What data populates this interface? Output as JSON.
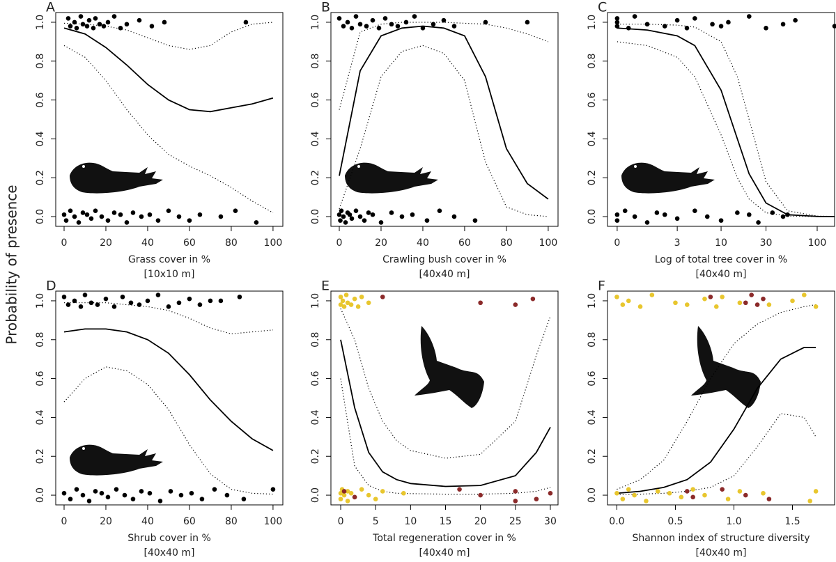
{
  "ylabel": "Probability of presence",
  "chart_data": [
    {
      "type": "line",
      "title": "A",
      "xlabel": "Grass cover in %",
      "xlabel2": "[10x10 m]",
      "xlim": [
        -4,
        104.7
      ],
      "ylim": [
        -0.05,
        1.05
      ],
      "xticks": [
        0,
        20,
        40,
        60,
        80,
        100
      ],
      "yticks": [
        {
          "value": 0,
          "label": "0.0"
        },
        {
          "value": 0.2,
          "label": "0.2"
        },
        {
          "value": 0.4,
          "label": "0.4"
        },
        {
          "value": 0.6,
          "label": "0.6"
        },
        {
          "value": 0.8,
          "label": "0.8"
        },
        {
          "value": 1,
          "label": "1.0"
        }
      ],
      "x": [
        0,
        10,
        20,
        30,
        40,
        50,
        60,
        70,
        80,
        90,
        100
      ],
      "fit": [
        0.97,
        0.94,
        0.87,
        0.78,
        0.68,
        0.6,
        0.55,
        0.54,
        0.56,
        0.58,
        0.61
      ],
      "upper": [
        0.995,
        0.99,
        0.98,
        0.96,
        0.92,
        0.88,
        0.86,
        0.88,
        0.95,
        0.99,
        1.0
      ],
      "lower": [
        0.88,
        0.82,
        0.7,
        0.55,
        0.42,
        0.32,
        0.26,
        0.21,
        0.15,
        0.08,
        0.02
      ],
      "groups": [
        {
          "color": "#000000",
          "x": [
            2,
            3,
            5,
            6,
            8,
            9,
            11,
            12,
            14,
            15,
            17,
            19,
            21,
            24,
            27,
            30,
            36,
            42,
            48,
            87,
            0,
            1,
            3,
            5,
            7,
            9,
            11,
            13,
            15,
            18,
            21,
            24,
            27,
            30,
            33,
            37,
            41,
            45,
            50,
            55,
            60,
            65,
            75,
            82,
            92
          ],
          "y": [
            1.02,
            0.98,
            1.0,
            0.97,
            1.03,
            0.99,
            0.98,
            1.01,
            0.97,
            1.02,
            0.99,
            0.98,
            1.0,
            1.03,
            0.97,
            0.99,
            1.01,
            0.98,
            1.0,
            1.0,
            0.01,
            -0.02,
            0.03,
            0.0,
            -0.03,
            0.02,
            0.01,
            -0.01,
            0.03,
            0.0,
            -0.02,
            0.02,
            0.01,
            -0.03,
            0.02,
            0.0,
            0.01,
            -0.02,
            0.03,
            0.0,
            -0.02,
            0.01,
            0.0,
            0.03,
            -0.03
          ]
        }
      ]
    },
    {
      "type": "line",
      "title": "B",
      "xlabel": "Crawling bush cover in %",
      "xlabel2": "[40x40 m]",
      "xlim": [
        -4,
        104.7
      ],
      "ylim": [
        -0.05,
        1.05
      ],
      "xticks": [
        0,
        20,
        40,
        60,
        80,
        100
      ],
      "yticks": [
        {
          "value": 0,
          "label": "0.0"
        },
        {
          "value": 0.2,
          "label": "0.2"
        },
        {
          "value": 0.4,
          "label": "0.4"
        },
        {
          "value": 0.6,
          "label": "0.6"
        },
        {
          "value": 0.8,
          "label": "0.8"
        },
        {
          "value": 1,
          "label": "1.0"
        }
      ],
      "x": [
        0,
        10,
        20,
        30,
        40,
        50,
        60,
        70,
        80,
        90,
        100
      ],
      "fit": [
        0.21,
        0.75,
        0.93,
        0.97,
        0.98,
        0.97,
        0.93,
        0.72,
        0.35,
        0.17,
        0.09
      ],
      "upper": [
        0.55,
        0.95,
        0.99,
        1.0,
        1.0,
        1.0,
        0.995,
        0.99,
        0.97,
        0.94,
        0.9
      ],
      "lower": [
        0.04,
        0.35,
        0.72,
        0.85,
        0.88,
        0.84,
        0.7,
        0.28,
        0.05,
        0.01,
        0.0
      ],
      "groups": [
        {
          "color": "#000000",
          "x": [
            0,
            2,
            4,
            6,
            8,
            10,
            13,
            16,
            19,
            22,
            25,
            28,
            32,
            36,
            40,
            45,
            50,
            55,
            70,
            90,
            0,
            0.5,
            1,
            2,
            3,
            4,
            5,
            6,
            8,
            10,
            12,
            14,
            16,
            20,
            25,
            30,
            35,
            42,
            48,
            55,
            65
          ],
          "y": [
            1.02,
            0.98,
            1.0,
            0.97,
            1.03,
            0.99,
            0.98,
            1.01,
            0.97,
            1.02,
            0.99,
            0.98,
            1.0,
            1.03,
            0.97,
            0.99,
            1.01,
            0.98,
            1.0,
            1.0,
            0.01,
            -0.02,
            0.03,
            0.0,
            -0.03,
            0.02,
            0.01,
            -0.01,
            0.03,
            0.0,
            -0.02,
            0.02,
            0.01,
            -0.03,
            0.02,
            0.0,
            0.01,
            -0.02,
            0.03,
            0.0,
            -0.02
          ]
        }
      ]
    },
    {
      "type": "line",
      "title": "C",
      "xlabel": "Log of total tree cover in %",
      "xlabel2": "[40x40 m]",
      "xscale": "log1p",
      "xlim": [
        -0.2,
        150
      ],
      "ylim": [
        -0.05,
        1.05
      ],
      "xticks": [
        0,
        3,
        10,
        30,
        100
      ],
      "yticks": [
        {
          "value": 0,
          "label": "0.0"
        },
        {
          "value": 0.2,
          "label": "0.2"
        },
        {
          "value": 0.4,
          "label": "0.4"
        },
        {
          "value": 0.6,
          "label": "0.6"
        },
        {
          "value": 0.8,
          "label": "0.8"
        },
        {
          "value": 1,
          "label": "1.0"
        }
      ],
      "x": [
        0,
        1,
        3,
        5,
        10,
        15,
        20,
        30,
        50,
        100,
        150
      ],
      "fit": [
        0.97,
        0.96,
        0.93,
        0.88,
        0.65,
        0.4,
        0.22,
        0.07,
        0.01,
        0.001,
        0
      ],
      "upper": [
        0.99,
        0.99,
        0.985,
        0.975,
        0.9,
        0.72,
        0.5,
        0.18,
        0.03,
        0.003,
        0.001
      ],
      "lower": [
        0.9,
        0.88,
        0.82,
        0.72,
        0.42,
        0.2,
        0.09,
        0.02,
        0.003,
        0,
        0
      ],
      "groups": [
        {
          "color": "#000000",
          "x": [
            0,
            0,
            0,
            0.3,
            0.5,
            1,
            2,
            3,
            4,
            5,
            8,
            10,
            12,
            20,
            30,
            45,
            60,
            150,
            0,
            0,
            0.2,
            0.5,
            1,
            1.5,
            2,
            3,
            5,
            7,
            10,
            15,
            20,
            25,
            35,
            45,
            50
          ],
          "y": [
            1.02,
            0.98,
            1.0,
            0.97,
            1.03,
            0.99,
            0.98,
            1.01,
            0.97,
            1.02,
            0.99,
            0.98,
            1.0,
            1.03,
            0.97,
            0.99,
            1.01,
            0.98,
            0.01,
            -0.02,
            0.03,
            0.0,
            -0.03,
            0.02,
            0.01,
            -0.01,
            0.03,
            0.0,
            -0.02,
            0.02,
            0.01,
            -0.03,
            0.02,
            0.0,
            0.01
          ]
        }
      ]
    },
    {
      "type": "line",
      "title": "D",
      "xlabel": "Shrub cover in %",
      "xlabel2": "[40x40 m]",
      "xlim": [
        -4,
        104.7
      ],
      "ylim": [
        -0.05,
        1.05
      ],
      "xticks": [
        0,
        20,
        40,
        60,
        80,
        100
      ],
      "yticks": [
        {
          "value": 0,
          "label": "0.0"
        },
        {
          "value": 0.2,
          "label": "0.2"
        },
        {
          "value": 0.4,
          "label": "0.4"
        },
        {
          "value": 0.6,
          "label": "0.6"
        },
        {
          "value": 0.8,
          "label": "0.8"
        },
        {
          "value": 1,
          "label": "1.0"
        }
      ],
      "x": [
        0,
        10,
        20,
        30,
        40,
        50,
        60,
        70,
        80,
        90,
        100
      ],
      "fit": [
        0.84,
        0.855,
        0.855,
        0.84,
        0.8,
        0.73,
        0.62,
        0.49,
        0.38,
        0.29,
        0.23
      ],
      "upper": [
        0.99,
        0.99,
        0.99,
        0.98,
        0.97,
        0.95,
        0.91,
        0.86,
        0.83,
        0.84,
        0.85
      ],
      "lower": [
        0.48,
        0.6,
        0.66,
        0.64,
        0.57,
        0.44,
        0.26,
        0.11,
        0.03,
        0.01,
        0.005
      ],
      "groups": [
        {
          "color": "#000000",
          "x": [
            0,
            2,
            5,
            8,
            10,
            13,
            16,
            20,
            24,
            28,
            32,
            36,
            40,
            45,
            50,
            55,
            60,
            65,
            70,
            75,
            84,
            0,
            3,
            6,
            9,
            12,
            15,
            18,
            21,
            25,
            29,
            33,
            37,
            41,
            46,
            51,
            56,
            61,
            66,
            72,
            78,
            86,
            100
          ],
          "y": [
            1.02,
            0.98,
            1.0,
            0.97,
            1.03,
            0.99,
            0.98,
            1.01,
            0.97,
            1.02,
            0.99,
            0.98,
            1.0,
            1.03,
            0.97,
            0.99,
            1.01,
            0.98,
            1.0,
            1.0,
            1.02,
            0.01,
            -0.02,
            0.03,
            0.0,
            -0.03,
            0.02,
            0.01,
            -0.01,
            0.03,
            0.0,
            -0.02,
            0.02,
            0.01,
            -0.03,
            0.02,
            0.0,
            0.01,
            -0.02,
            0.03,
            0.0,
            -0.02,
            0.03
          ]
        }
      ]
    },
    {
      "type": "line",
      "title": "E",
      "xlabel": "Total regeneration cover in %",
      "xlabel2": "[40x40 m]",
      "xlim": [
        -1.4,
        31.1
      ],
      "ylim": [
        -0.05,
        1.05
      ],
      "xticks": [
        0,
        5,
        10,
        15,
        20,
        25,
        30
      ],
      "yticks": [
        {
          "value": 0,
          "label": "0.0"
        },
        {
          "value": 0.2,
          "label": "0.2"
        },
        {
          "value": 0.4,
          "label": "0.4"
        },
        {
          "value": 0.6,
          "label": "0.6"
        },
        {
          "value": 0.8,
          "label": "0.8"
        },
        {
          "value": 1,
          "label": "1.0"
        }
      ],
      "x": [
        0,
        2,
        4,
        6,
        8,
        10,
        15,
        20,
        25,
        28,
        30
      ],
      "fit": [
        0.8,
        0.45,
        0.22,
        0.12,
        0.08,
        0.06,
        0.045,
        0.05,
        0.1,
        0.22,
        0.35
      ],
      "upper": [
        0.96,
        0.8,
        0.55,
        0.38,
        0.28,
        0.23,
        0.19,
        0.21,
        0.38,
        0.72,
        0.92
      ],
      "lower": [
        0.6,
        0.15,
        0.05,
        0.02,
        0.01,
        0.008,
        0.005,
        0.005,
        0.01,
        0.02,
        0.04
      ],
      "groups": [
        {
          "color": "#e8c62e",
          "x": [
            0,
            0,
            0.3,
            0.5,
            0.8,
            1,
            1.5,
            2,
            2.5,
            3,
            4,
            0,
            0,
            0.2,
            0.5,
            1,
            1,
            1.5,
            2,
            3,
            4,
            5,
            6,
            9
          ],
          "y": [
            1.02,
            0.98,
            1.0,
            0.97,
            1.03,
            0.99,
            0.98,
            1.01,
            0.97,
            1.02,
            0.99,
            0.01,
            -0.02,
            0.03,
            0.0,
            -0.03,
            0.02,
            0.01,
            -0.01,
            0.03,
            0.0,
            -0.02,
            0.02,
            0.01
          ]
        },
        {
          "color": "#8b2a2a",
          "x": [
            6,
            20,
            25,
            27.5,
            0.5,
            2,
            17,
            20,
            25,
            25,
            28,
            30
          ],
          "y": [
            1.02,
            0.99,
            0.98,
            1.01,
            0.02,
            -0.01,
            0.03,
            0.0,
            -0.03,
            0.02,
            -0.02,
            0.01
          ]
        }
      ]
    },
    {
      "type": "line",
      "title": "F",
      "xlabel": "Shannon index of structure diversity",
      "xlabel2": "[40x40 m]",
      "xlim": [
        -0.08,
        1.86
      ],
      "ylim": [
        -0.05,
        1.05
      ],
      "xticks": [
        {
          "value": 0,
          "label": "0.0"
        },
        {
          "value": 0.5,
          "label": "0.5"
        },
        {
          "value": 1,
          "label": "1.0"
        },
        {
          "value": 1.5,
          "label": "1.5"
        }
      ],
      "yticks": [
        {
          "value": 0,
          "label": "0.0"
        },
        {
          "value": 0.2,
          "label": "0.2"
        },
        {
          "value": 0.4,
          "label": "0.4"
        },
        {
          "value": 0.6,
          "label": "0.6"
        },
        {
          "value": 0.8,
          "label": "0.8"
        },
        {
          "value": 1,
          "label": "1.0"
        }
      ],
      "x": [
        0,
        0.2,
        0.4,
        0.6,
        0.8,
        1.0,
        1.2,
        1.4,
        1.6,
        1.7
      ],
      "fit": [
        0.01,
        0.02,
        0.04,
        0.08,
        0.17,
        0.34,
        0.55,
        0.7,
        0.76,
        0.76
      ],
      "upper": [
        0.03,
        0.08,
        0.18,
        0.38,
        0.6,
        0.78,
        0.88,
        0.94,
        0.97,
        0.98
      ],
      "lower": [
        0.003,
        0.005,
        0.01,
        0.02,
        0.04,
        0.1,
        0.25,
        0.42,
        0.4,
        0.3
      ],
      "groups": [
        {
          "color": "#e8c62e",
          "x": [
            0,
            0.05,
            0.1,
            0.2,
            0.3,
            0.5,
            0.6,
            0.75,
            0.85,
            0.9,
            1.05,
            1.3,
            1.5,
            1.6,
            1.7,
            0,
            0.05,
            0.1,
            0.15,
            0.25,
            0.35,
            0.45,
            0.55,
            0.65,
            0.75,
            0.95,
            1.05,
            1.25,
            1.65,
            1.7
          ],
          "y": [
            1.02,
            0.98,
            1.0,
            0.97,
            1.03,
            0.99,
            0.98,
            1.01,
            0.97,
            1.02,
            0.99,
            0.98,
            1.0,
            1.03,
            0.97,
            0.01,
            -0.02,
            0.03,
            0.0,
            -0.03,
            0.02,
            0.01,
            -0.01,
            0.03,
            0.0,
            -0.02,
            0.02,
            0.01,
            -0.03,
            0.02
          ]
        },
        {
          "color": "#8b2a2a",
          "x": [
            0.8,
            1.1,
            1.15,
            1.2,
            1.25,
            0.6,
            0.65,
            0.9,
            1.1,
            1.3
          ],
          "y": [
            1.02,
            0.99,
            1.03,
            0.98,
            1.01,
            0.02,
            -0.01,
            0.03,
            0.0,
            -0.02
          ]
        }
      ]
    }
  ]
}
